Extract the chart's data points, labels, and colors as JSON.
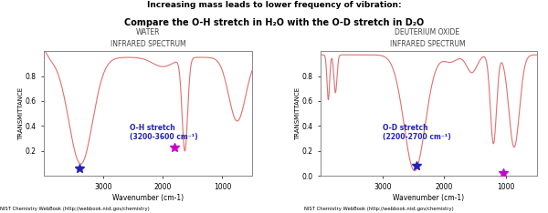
{
  "title_line1": "Increasing mass leads to lower frequency of vibration:",
  "title_line2": "Compare the O-H stretch in H₂O with the O-D stretch in D₂O",
  "left_title1": "WATER",
  "left_title2": "INFRARED SPECTRUM",
  "right_title1": "DEUTERIUM OXIDE",
  "right_title2": "INFRARED SPECTRUM",
  "xlabel": "Wavenumber (cm-1)",
  "ylabel": "TRANSMITTANCE",
  "nist_credit": "NIST Chemistry WebBook (http://webbook.nist.gov/chemistry)",
  "line_color": "#e07070",
  "bg_color": "#ffffff",
  "annotation_color_blue": "#2222bb",
  "annotation_color_magenta": "#cc00cc",
  "h2o_annotation": "O-H stretch\n(3200-3600 cm⁻¹)",
  "d2o_annotation": "O-D stretch\n(2200-2700 cm⁻¹)"
}
